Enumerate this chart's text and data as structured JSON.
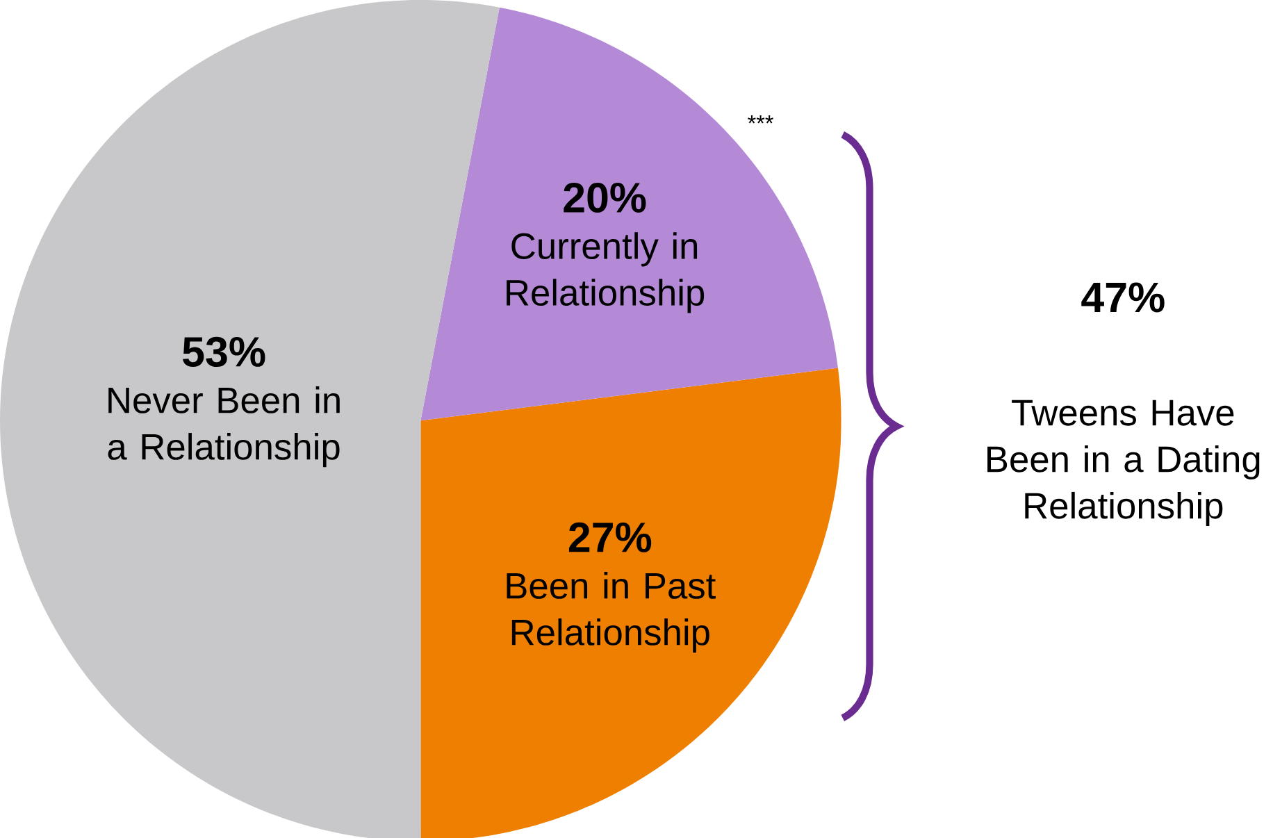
{
  "chart_data": {
    "type": "pie",
    "categories": [
      "Been in Past Relationship",
      "Currently in Relationship",
      "Never Been in a Relationship"
    ],
    "values": [
      27,
      20,
      53
    ],
    "value_labels": [
      "27%",
      "20%",
      "53%"
    ],
    "colors": [
      "#ef7f00",
      "#b48ad6",
      "#c8c8ca"
    ],
    "annotations": [
      "***",
      "47%",
      "Tweens Have Been in a Dating Relationship"
    ]
  }
}
